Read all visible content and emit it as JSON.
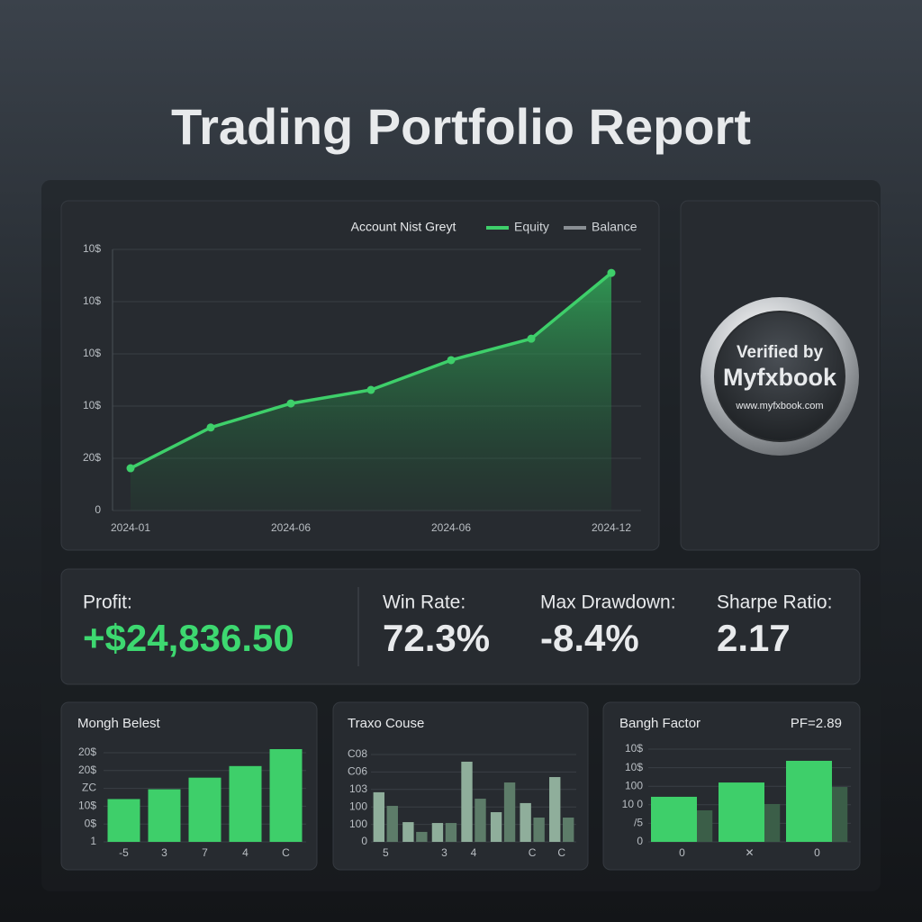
{
  "header": {
    "title": "Trading Portfolio Report"
  },
  "chart_data": [
    {
      "type": "line",
      "title": "Account Nist Greyt",
      "legend": [
        {
          "name": "Equity",
          "color": "#3ecf6a"
        },
        {
          "name": "Balance",
          "color": "#8a8f94"
        }
      ],
      "categories": [
        "2024-01",
        null,
        "2024-06",
        null,
        "2024-06",
        null,
        "2024-12"
      ],
      "series": [
        {
          "values": [
            0.81,
            1.59,
            2.05,
            2.31,
            2.88,
            3.29,
            4.55
          ]
        }
      ],
      "ylim": [
        0,
        5
      ],
      "yticks": [
        0,
        {
          "value": 1,
          "label": "20$"
        },
        {
          "value": 2,
          "label": "10$"
        },
        {
          "value": 3,
          "label": "10$"
        },
        {
          "value": 4,
          "label": "10$"
        },
        {
          "value": 5,
          "label": "10$"
        }
      ],
      "grid": true
    },
    {
      "type": "bar",
      "title": "Mongh Belest",
      "categories": [
        "-5",
        "3",
        "7",
        "4",
        "C"
      ],
      "series": [
        {
          "color": "#3ecf6a",
          "values": [
            2.4,
            2.95,
            3.6,
            4.25,
            5.2
          ]
        }
      ],
      "ylim": [
        0,
        5.25
      ],
      "yticks": [
        {
          "value": 0,
          "label": "1"
        },
        {
          "value": 1,
          "label": "0$"
        },
        {
          "value": 2,
          "label": "10$"
        },
        {
          "value": 3,
          "label": "ZC"
        },
        {
          "value": 4,
          "label": "20$"
        },
        {
          "value": 5,
          "label": "20$"
        }
      ],
      "grid": true
    },
    {
      "type": "bar",
      "title": "Traxo Couse",
      "categories": [
        "5",
        null,
        "3",
        "4",
        null,
        "C",
        "C"
      ],
      "series": [
        {
          "color": "#8fae9b",
          "values": [
            2.84,
            1.13,
            1.08,
            4.59,
            1.7,
            2.22,
            3.71
          ]
        },
        {
          "color": "#5d7c69",
          "values": [
            2.06,
            0.57,
            1.08,
            2.47,
            3.4,
            1.39,
            1.39
          ]
        }
      ],
      "ylim": [
        0,
        5
      ],
      "yticks": [
        0,
        {
          "value": 1,
          "label": "100"
        },
        {
          "value": 2,
          "label": "100"
        },
        {
          "value": 3,
          "label": "103"
        },
        {
          "value": 4,
          "label": "C06"
        },
        {
          "value": 5,
          "label": "C08"
        }
      ],
      "grid": true
    },
    {
      "type": "bar",
      "title": "Bangh Factor",
      "annotation": "PF=2.89",
      "categories": [
        "0",
        "✕",
        "0"
      ],
      "series": [
        {
          "color": "#3ecf6a",
          "values": [
            2.43,
            3.2,
            4.37
          ]
        },
        {
          "color": "#3b5e48",
          "values": [
            1.7,
            2.04,
            2.96
          ]
        }
      ],
      "ylim": [
        0,
        5
      ],
      "yticks": [
        0,
        {
          "value": 1,
          "label": "/5"
        },
        {
          "value": 2,
          "label": "10 0"
        },
        {
          "value": 3,
          "label": "100"
        },
        {
          "value": 4,
          "label": "10$"
        },
        {
          "value": 5,
          "label": "10$"
        }
      ],
      "grid": true
    }
  ],
  "stats": [
    {
      "label": "Profit:",
      "value": "+$24,836.50"
    },
    {
      "label": "Win Rate:",
      "value": "72.3%"
    },
    {
      "label": "Max Drawdown:",
      "value": "-8.4%"
    },
    {
      "label": "Sharpe Ratio:",
      "value": "2.17"
    }
  ],
  "badge": {
    "line1": "Verified by",
    "name": "Myfxbook",
    "url": "www.myfxbook.com"
  }
}
